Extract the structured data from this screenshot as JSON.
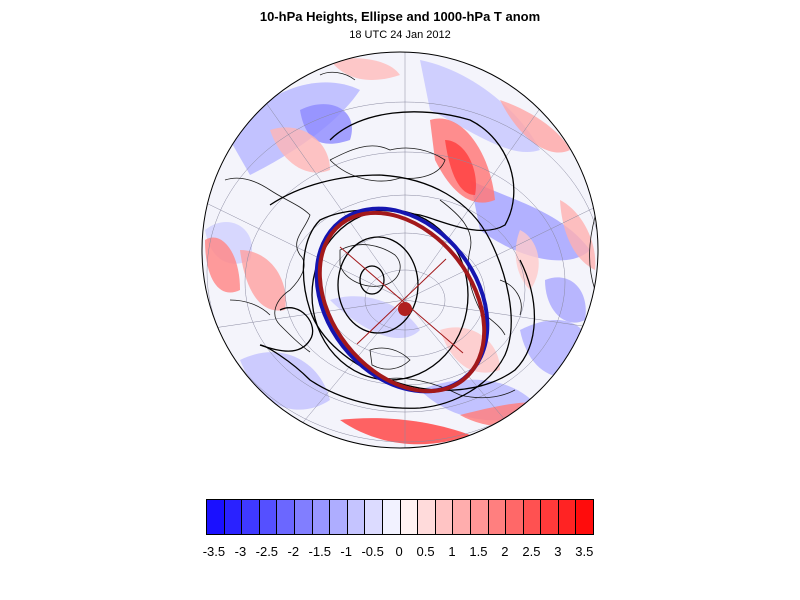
{
  "title": "10-hPa Heights, Ellipse and 1000-hPa T anom",
  "subtitle": "18 UTC 24 Jan 2012",
  "colorbar": {
    "colors": [
      "#1a10ff",
      "#2a22ff",
      "#3f39ff",
      "#5550ff",
      "#6b67ff",
      "#817eff",
      "#9896ff",
      "#aeadff",
      "#c5c4ff",
      "#dcdbff",
      "#f2f2ff",
      "#fff2f2",
      "#ffdbdb",
      "#ffc4c4",
      "#ffadad",
      "#ff9696",
      "#ff7f7f",
      "#ff6868",
      "#ff5151",
      "#ff3a3a",
      "#ff2323",
      "#ff0c0c"
    ],
    "labels": [
      "-3.5",
      "-3",
      "-2.5",
      "-2",
      "-1.5",
      "-1",
      "-0.5",
      "0",
      "0.5",
      "1",
      "1.5",
      "2",
      "2.5",
      "3",
      "3.5"
    ]
  },
  "map": {
    "projection": "orthographic",
    "ocean_fill": "#f4f4fb",
    "ellipse_fit_color": "#a3191b",
    "ellipse_obs_color": "#1515b0",
    "center_marker_color": "#b02020"
  }
}
